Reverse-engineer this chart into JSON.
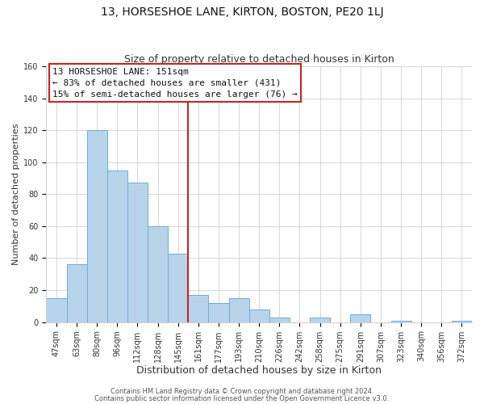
{
  "title": "13, HORSESHOE LANE, KIRTON, BOSTON, PE20 1LJ",
  "subtitle": "Size of property relative to detached houses in Kirton",
  "xlabel": "Distribution of detached houses by size in Kirton",
  "ylabel": "Number of detached properties",
  "bar_labels": [
    "47sqm",
    "63sqm",
    "80sqm",
    "96sqm",
    "112sqm",
    "128sqm",
    "145sqm",
    "161sqm",
    "177sqm",
    "193sqm",
    "210sqm",
    "226sqm",
    "242sqm",
    "258sqm",
    "275sqm",
    "291sqm",
    "307sqm",
    "323sqm",
    "340sqm",
    "356sqm",
    "372sqm"
  ],
  "bar_values": [
    15,
    36,
    120,
    95,
    87,
    60,
    43,
    17,
    12,
    15,
    8,
    3,
    0,
    3,
    0,
    5,
    0,
    1,
    0,
    0,
    1
  ],
  "bar_color": "#b8d4ea",
  "bar_edge_color": "#6aaed6",
  "reference_line_index": 7,
  "ylim": [
    0,
    160
  ],
  "yticks": [
    0,
    20,
    40,
    60,
    80,
    100,
    120,
    140,
    160
  ],
  "annotation_title": "13 HORSESHOE LANE: 151sqm",
  "annotation_line1": "← 83% of detached houses are smaller (431)",
  "annotation_line2": "15% of semi-detached houses are larger (76) →",
  "footer1": "Contains HM Land Registry data © Crown copyright and database right 2024.",
  "footer2": "Contains public sector information licensed under the Open Government Licence v3.0.",
  "background_color": "#ffffff",
  "grid_color": "#d0d0d0",
  "title_fontsize": 10,
  "subtitle_fontsize": 9,
  "xlabel_fontsize": 9,
  "ylabel_fontsize": 8,
  "tick_fontsize": 7,
  "footer_fontsize": 6,
  "annotation_fontsize": 8
}
